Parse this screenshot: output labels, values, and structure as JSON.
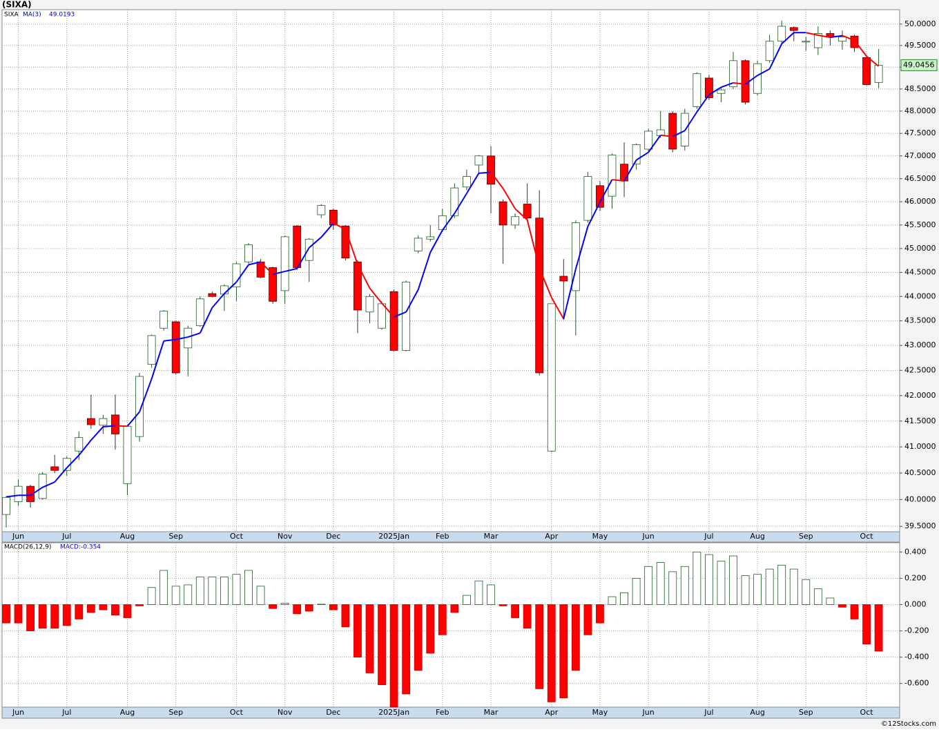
{
  "chart_data": [
    {
      "type": "candlestick",
      "title": "(SIXA)",
      "legend": "SIXA",
      "categories": [
        null,
        "Jun",
        null,
        null,
        null,
        "Jul",
        null,
        null,
        null,
        null,
        "Aug",
        null,
        null,
        null,
        "Sep",
        null,
        null,
        null,
        null,
        "Oct",
        null,
        null,
        null,
        "Nov",
        null,
        null,
        null,
        "Dec",
        null,
        null,
        null,
        null,
        "2025Jan",
        null,
        null,
        null,
        "Feb",
        null,
        null,
        null,
        "Mar",
        null,
        null,
        null,
        null,
        "Apr",
        null,
        null,
        null,
        "May",
        null,
        null,
        null,
        "Jun",
        null,
        null,
        null,
        null,
        "Jul",
        null,
        null,
        null,
        "Aug",
        null,
        null,
        null,
        "Sep",
        null,
        null,
        null,
        null,
        "Oct",
        null
      ],
      "open": [
        39.72,
        39.96,
        40.25,
        40.02,
        40.62,
        40.55,
        40.92,
        41.55,
        41.42,
        41.62,
        40.3,
        41.2,
        42.62,
        43.35,
        43.48,
        42.95,
        43.4,
        44.06,
        44.05,
        44.2,
        44.72,
        44.72,
        44.6,
        44.12,
        45.48,
        44.75,
        45.72,
        45.82,
        45.48,
        44.72,
        43.68,
        43.35,
        44.1,
        42.9,
        44.95,
        45.2,
        45.4,
        45.7,
        46.32,
        46.8,
        47.0,
        46.0,
        45.5,
        45.95,
        45.65,
        40.92,
        44.42,
        44.12,
        45.6,
        46.35,
        46.12,
        46.82,
        46.82,
        47.15,
        47.45,
        47.95,
        47.22,
        48.1,
        48.75,
        48.4,
        48.55,
        49.15,
        48.4,
        49.15,
        49.6,
        49.92,
        49.58,
        49.45,
        49.78,
        49.6,
        49.72,
        49.22,
        48.65
      ],
      "high": [
        40.06,
        40.38,
        40.28,
        40.52,
        40.85,
        40.82,
        41.3,
        42.02,
        41.62,
        42.02,
        41.42,
        42.45,
        43.22,
        43.72,
        43.5,
        43.4,
        44.0,
        44.1,
        44.25,
        44.72,
        45.12,
        44.78,
        44.62,
        45.28,
        45.5,
        45.22,
        45.95,
        45.85,
        45.5,
        44.75,
        44.05,
        43.9,
        44.15,
        44.33,
        45.28,
        45.5,
        45.85,
        46.4,
        46.7,
        47.02,
        47.22,
        46.05,
        45.75,
        46.4,
        46.25,
        43.85,
        44.78,
        45.6,
        46.65,
        46.45,
        47.05,
        47.3,
        47.28,
        47.6,
        48.0,
        48.0,
        48.05,
        48.88,
        48.82,
        48.55,
        49.35,
        49.18,
        49.15,
        49.75,
        50.08,
        49.95,
        49.7,
        49.95,
        49.85,
        49.85,
        49.75,
        49.25,
        49.42
      ],
      "low": [
        39.48,
        39.88,
        39.85,
        40.0,
        40.5,
        40.45,
        40.75,
        41.35,
        41.25,
        40.95,
        40.08,
        41.1,
        42.55,
        43.3,
        42.42,
        42.38,
        43.38,
        43.98,
        43.7,
        43.9,
        44.68,
        44.38,
        43.85,
        43.85,
        44.55,
        44.3,
        45.65,
        45.4,
        44.75,
        43.25,
        43.45,
        43.32,
        42.88,
        42.88,
        44.9,
        45.15,
        45.35,
        45.65,
        46.25,
        46.6,
        45.75,
        44.68,
        45.42,
        45.6,
        42.4,
        40.9,
        43.52,
        43.2,
        45.55,
        45.8,
        45.85,
        46.1,
        46.7,
        47.1,
        47.4,
        47.08,
        47.12,
        48.05,
        48.25,
        48.2,
        48.5,
        48.15,
        48.35,
        49.1,
        49.55,
        49.6,
        49.38,
        49.28,
        49.5,
        49.4,
        49.35,
        48.58,
        48.52
      ],
      "close": [
        40.04,
        40.25,
        39.96,
        40.48,
        40.55,
        40.78,
        41.18,
        41.43,
        41.55,
        41.25,
        41.4,
        42.38,
        43.2,
        43.7,
        42.45,
        43.35,
        43.95,
        44.0,
        44.22,
        44.68,
        45.08,
        44.4,
        43.9,
        45.25,
        44.6,
        45.2,
        45.92,
        45.5,
        44.8,
        43.72,
        44.0,
        43.85,
        42.9,
        44.3,
        45.22,
        45.25,
        45.7,
        46.3,
        46.55,
        47.0,
        46.38,
        45.5,
        45.68,
        45.65,
        42.45,
        43.85,
        44.32,
        45.55,
        46.55,
        45.88,
        47.02,
        46.45,
        47.25,
        47.55,
        47.58,
        47.15,
        47.95,
        48.85,
        48.3,
        48.48,
        49.15,
        48.2,
        49.08,
        49.6,
        49.95,
        49.85,
        49.6,
        49.78,
        49.7,
        49.7,
        49.45,
        48.6,
        49.0456
      ],
      "up_color": "#ffffff",
      "down_color": "#ff0000",
      "overlays": [
        {
          "name": "MA(3)",
          "color": "#0000ff",
          "down_color": "#ff0000",
          "values": [
            40.05,
            40.08,
            40.08,
            40.23,
            40.33,
            40.6,
            40.84,
            41.13,
            41.39,
            41.41,
            41.4,
            41.68,
            42.33,
            43.09,
            43.12,
            43.17,
            43.25,
            43.77,
            44.06,
            44.3,
            44.66,
            44.72,
            44.46,
            44.52,
            44.58,
            45.02,
            45.24,
            45.54,
            45.41,
            44.67,
            44.17,
            43.86,
            43.58,
            43.68,
            44.14,
            44.92,
            45.39,
            45.75,
            46.18,
            46.62,
            46.64,
            46.29,
            45.85,
            45.61,
            44.59,
            43.98,
            43.54,
            44.57,
            45.47,
            45.99,
            46.48,
            46.45,
            46.91,
            47.08,
            47.46,
            47.43,
            47.56,
            47.98,
            48.37,
            48.54,
            48.64,
            48.61,
            48.81,
            48.96,
            49.54,
            49.8,
            49.8,
            49.74,
            49.69,
            49.73,
            49.62,
            49.25,
            49.0193
          ]
        }
      ],
      "log": true,
      "grid": true,
      "ylim": [
        39.4,
        50.34
      ],
      "yticks": [
        {
          "value": 39.5,
          "label": "39.5000"
        },
        {
          "value": 40,
          "label": "40.0000"
        },
        {
          "value": 40.5,
          "label": "40.5000"
        },
        {
          "value": 41,
          "label": "41.0000"
        },
        {
          "value": 41.5,
          "label": "41.5000"
        },
        {
          "value": 42,
          "label": "42.0000"
        },
        {
          "value": 42.5,
          "label": "42.5000"
        },
        {
          "value": 43,
          "label": "43.0000"
        },
        {
          "value": 43.5,
          "label": "43.5000"
        },
        {
          "value": 44,
          "label": "44.0000"
        },
        {
          "value": 44.5,
          "label": "44.5000"
        },
        {
          "value": 45,
          "label": "45.0000"
        },
        {
          "value": 45.5,
          "label": "45.5000"
        },
        {
          "value": 46,
          "label": "46.0000"
        },
        {
          "value": 46.5,
          "label": "46.5000"
        },
        {
          "value": 47,
          "label": "47.0000"
        },
        {
          "value": 47.5,
          "label": "47.5000"
        },
        {
          "value": 48,
          "label": "48.0000"
        },
        {
          "value": 48.5,
          "label": "48.5000"
        },
        {
          "value": 49,
          "label": "49.0000"
        },
        {
          "value": 49.5,
          "label": "49.5000"
        },
        {
          "value": 50,
          "label": "50.0000"
        }
      ]
    },
    {
      "type": "bar",
      "title": "MACD(26,12,9)",
      "legend": "MACD:-0.354",
      "categories": [
        null,
        "Jun",
        null,
        null,
        null,
        "Jul",
        null,
        null,
        null,
        null,
        "Aug",
        null,
        null,
        null,
        "Sep",
        null,
        null,
        null,
        null,
        "Oct",
        null,
        null,
        null,
        "Nov",
        null,
        null,
        null,
        "Dec",
        null,
        null,
        null,
        null,
        "2025Jan",
        null,
        null,
        null,
        "Feb",
        null,
        null,
        null,
        "Mar",
        null,
        null,
        null,
        null,
        "Apr",
        null,
        null,
        null,
        "May",
        null,
        null,
        null,
        "Jun",
        null,
        null,
        null,
        null,
        "Jul",
        null,
        null,
        null,
        "Aug",
        null,
        null,
        null,
        "Sep",
        null,
        null,
        null,
        null,
        "Oct",
        null
      ],
      "values": [
        -0.14,
        -0.14,
        -0.2,
        -0.18,
        -0.18,
        -0.16,
        -0.11,
        -0.06,
        -0.04,
        -0.08,
        -0.1,
        -0.01,
        0.13,
        0.26,
        0.14,
        0.15,
        0.21,
        0.21,
        0.21,
        0.23,
        0.26,
        0.14,
        -0.03,
        0.01,
        -0.07,
        -0.05,
        0.003,
        -0.04,
        -0.17,
        -0.4,
        -0.52,
        -0.61,
        -0.78,
        -0.68,
        -0.5,
        -0.37,
        -0.23,
        -0.06,
        0.07,
        0.18,
        0.15,
        -0.01,
        -0.1,
        -0.18,
        -0.64,
        -0.74,
        -0.71,
        -0.5,
        -0.23,
        -0.14,
        0.06,
        0.09,
        0.2,
        0.29,
        0.32,
        0.25,
        0.29,
        0.4,
        0.38,
        0.33,
        0.37,
        0.22,
        0.23,
        0.27,
        0.3,
        0.27,
        0.19,
        0.12,
        0.05,
        -0.02,
        -0.11,
        -0.3,
        -0.354
      ],
      "positive_color": "#ffffff",
      "negative_color": "#ff0000",
      "grid": true,
      "ylim": [
        -0.78,
        0.47
      ],
      "yticks": [
        {
          "value": -0.6,
          "label": "-0.600"
        },
        {
          "value": -0.4,
          "label": "-0.400"
        },
        {
          "value": -0.2,
          "label": "-0.200"
        },
        {
          "value": 0,
          "label": "0.000"
        },
        {
          "value": 0.2,
          "label": "0.200"
        },
        {
          "value": 0.4,
          "label": "0.400"
        }
      ]
    }
  ],
  "credit": "©12Stocks.com"
}
